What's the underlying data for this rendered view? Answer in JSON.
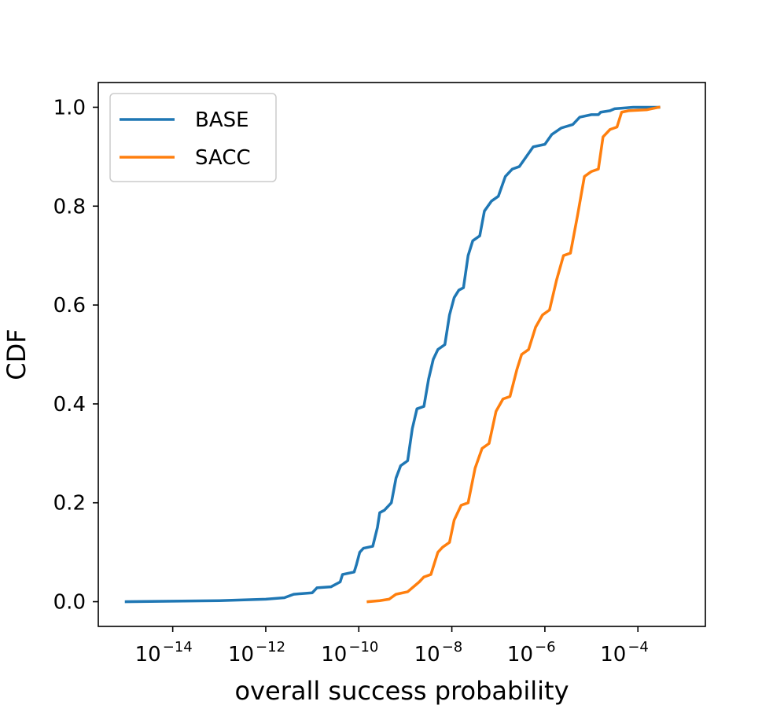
{
  "chart_data": {
    "type": "line",
    "title": "",
    "xlabel": "overall success probability",
    "ylabel": "CDF",
    "xscale": "log",
    "xlim_log10": [
      -15.6,
      -2.55
    ],
    "ylim": [
      -0.05,
      1.05
    ],
    "x_ticks": [
      {
        "base": "10",
        "exp": "−14",
        "log10": -14
      },
      {
        "base": "10",
        "exp": "−12",
        "log10": -12
      },
      {
        "base": "10",
        "exp": "−10",
        "log10": -10
      },
      {
        "base": "10",
        "exp": "−8",
        "log10": -8
      },
      {
        "base": "10",
        "exp": "−6",
        "log10": -6
      },
      {
        "base": "10",
        "exp": "−4",
        "log10": -4
      }
    ],
    "y_ticks": [
      {
        "label": "0.0",
        "value": 0.0
      },
      {
        "label": "0.2",
        "value": 0.2
      },
      {
        "label": "0.4",
        "value": 0.4
      },
      {
        "label": "0.6",
        "value": 0.6
      },
      {
        "label": "0.8",
        "value": 0.8
      },
      {
        "label": "1.0",
        "value": 1.0
      }
    ],
    "legend": {
      "position": "upper-left"
    },
    "series": [
      {
        "name": "BASE",
        "color": "#1f77b4",
        "points": [
          [
            -15.0,
            0.0
          ],
          [
            -13.0,
            0.002
          ],
          [
            -12.0,
            0.005
          ],
          [
            -11.6,
            0.008
          ],
          [
            -11.4,
            0.015
          ],
          [
            -11.0,
            0.018
          ],
          [
            -10.9,
            0.028
          ],
          [
            -10.6,
            0.03
          ],
          [
            -10.4,
            0.04
          ],
          [
            -10.35,
            0.055
          ],
          [
            -10.1,
            0.06
          ],
          [
            -10.05,
            0.075
          ],
          [
            -9.98,
            0.1
          ],
          [
            -9.9,
            0.108
          ],
          [
            -9.7,
            0.112
          ],
          [
            -9.6,
            0.15
          ],
          [
            -9.55,
            0.18
          ],
          [
            -9.45,
            0.185
          ],
          [
            -9.3,
            0.2
          ],
          [
            -9.2,
            0.25
          ],
          [
            -9.1,
            0.275
          ],
          [
            -8.95,
            0.285
          ],
          [
            -8.85,
            0.35
          ],
          [
            -8.75,
            0.39
          ],
          [
            -8.6,
            0.395
          ],
          [
            -8.5,
            0.45
          ],
          [
            -8.4,
            0.49
          ],
          [
            -8.3,
            0.51
          ],
          [
            -8.15,
            0.52
          ],
          [
            -8.05,
            0.58
          ],
          [
            -7.95,
            0.615
          ],
          [
            -7.85,
            0.63
          ],
          [
            -7.75,
            0.635
          ],
          [
            -7.65,
            0.7
          ],
          [
            -7.55,
            0.73
          ],
          [
            -7.4,
            0.74
          ],
          [
            -7.3,
            0.79
          ],
          [
            -7.15,
            0.81
          ],
          [
            -7.0,
            0.82
          ],
          [
            -6.85,
            0.86
          ],
          [
            -6.7,
            0.875
          ],
          [
            -6.55,
            0.88
          ],
          [
            -6.4,
            0.9
          ],
          [
            -6.25,
            0.92
          ],
          [
            -6.0,
            0.925
          ],
          [
            -5.85,
            0.945
          ],
          [
            -5.65,
            0.958
          ],
          [
            -5.4,
            0.965
          ],
          [
            -5.25,
            0.98
          ],
          [
            -5.0,
            0.985
          ],
          [
            -4.85,
            0.985
          ],
          [
            -4.8,
            0.99
          ],
          [
            -4.6,
            0.993
          ],
          [
            -4.5,
            0.997
          ],
          [
            -4.1,
            1.0
          ],
          [
            -3.55,
            1.0
          ]
        ]
      },
      {
        "name": "SACC",
        "color": "#ff7f0e",
        "points": [
          [
            -9.8,
            0.0
          ],
          [
            -9.55,
            0.002
          ],
          [
            -9.35,
            0.005
          ],
          [
            -9.2,
            0.015
          ],
          [
            -8.95,
            0.02
          ],
          [
            -8.7,
            0.04
          ],
          [
            -8.6,
            0.05
          ],
          [
            -8.45,
            0.055
          ],
          [
            -8.3,
            0.1
          ],
          [
            -8.2,
            0.11
          ],
          [
            -8.05,
            0.12
          ],
          [
            -7.95,
            0.165
          ],
          [
            -7.8,
            0.195
          ],
          [
            -7.65,
            0.2
          ],
          [
            -7.5,
            0.27
          ],
          [
            -7.35,
            0.31
          ],
          [
            -7.2,
            0.32
          ],
          [
            -7.05,
            0.385
          ],
          [
            -6.9,
            0.41
          ],
          [
            -6.75,
            0.415
          ],
          [
            -6.6,
            0.47
          ],
          [
            -6.5,
            0.5
          ],
          [
            -6.35,
            0.51
          ],
          [
            -6.2,
            0.555
          ],
          [
            -6.05,
            0.58
          ],
          [
            -5.9,
            0.59
          ],
          [
            -5.75,
            0.65
          ],
          [
            -5.6,
            0.7
          ],
          [
            -5.45,
            0.705
          ],
          [
            -5.3,
            0.78
          ],
          [
            -5.15,
            0.86
          ],
          [
            -5.0,
            0.87
          ],
          [
            -4.85,
            0.875
          ],
          [
            -4.75,
            0.94
          ],
          [
            -4.6,
            0.955
          ],
          [
            -4.45,
            0.96
          ],
          [
            -4.35,
            0.99
          ],
          [
            -4.2,
            0.993
          ],
          [
            -3.8,
            0.995
          ],
          [
            -3.55,
            1.0
          ]
        ]
      }
    ]
  }
}
